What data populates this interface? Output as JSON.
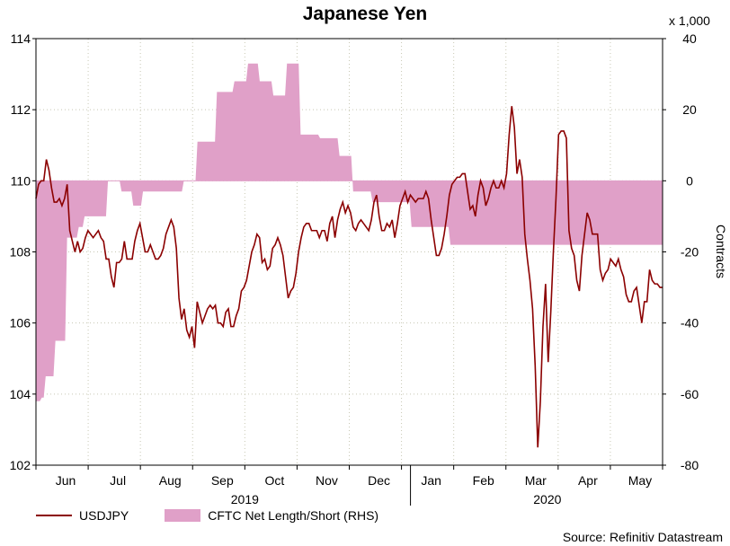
{
  "chart_data": {
    "type": "line+area",
    "title": "Japanese Yen",
    "left_axis": {
      "min": 102,
      "max": 114,
      "ticks": [
        102,
        104,
        106,
        108,
        110,
        112,
        114
      ]
    },
    "right_axis": {
      "label": "Contracts",
      "scale_note": "x 1,000",
      "min": -80,
      "max": 40,
      "ticks": [
        -80,
        -60,
        -40,
        -20,
        0,
        20,
        40
      ]
    },
    "x_axis": {
      "months": [
        "Jun",
        "Jul",
        "Aug",
        "Sep",
        "Oct",
        "Nov",
        "Dec",
        "Jan",
        "Feb",
        "Mar",
        "Apr",
        "May"
      ],
      "years": [
        "2019",
        "2020"
      ]
    },
    "series": [
      {
        "name": "USDJPY",
        "axis": "left",
        "style": "line",
        "color": "#8b0000",
        "values": [
          109.5,
          109.9,
          110.0,
          110.0,
          110.6,
          110.3,
          109.8,
          109.4,
          109.4,
          109.5,
          109.3,
          109.5,
          109.9,
          108.6,
          108.3,
          108.0,
          108.3,
          108.0,
          108.1,
          108.4,
          108.6,
          108.5,
          108.4,
          108.5,
          108.6,
          108.4,
          108.3,
          107.8,
          107.8,
          107.3,
          107.0,
          107.7,
          107.7,
          107.8,
          108.3,
          107.8,
          107.8,
          107.8,
          108.3,
          108.6,
          108.8,
          108.4,
          108.0,
          108.0,
          108.2,
          108.0,
          107.8,
          107.8,
          107.9,
          108.1,
          108.5,
          108.7,
          108.9,
          108.7,
          108.1,
          106.7,
          106.1,
          106.4,
          105.8,
          105.6,
          105.9,
          105.3,
          106.6,
          106.3,
          106.0,
          106.2,
          106.4,
          106.5,
          106.4,
          106.5,
          106.0,
          106.0,
          105.9,
          106.3,
          106.4,
          105.9,
          105.9,
          106.2,
          106.4,
          106.9,
          107.0,
          107.2,
          107.6,
          108.0,
          108.2,
          108.5,
          108.4,
          107.7,
          107.8,
          107.5,
          107.6,
          108.1,
          108.2,
          108.4,
          108.2,
          107.9,
          107.3,
          106.7,
          106.9,
          107.0,
          107.4,
          108.0,
          108.4,
          108.7,
          108.8,
          108.8,
          108.6,
          108.6,
          108.6,
          108.4,
          108.6,
          108.6,
          108.3,
          108.8,
          109.0,
          108.4,
          108.9,
          109.2,
          109.4,
          109.1,
          109.3,
          109.1,
          108.7,
          108.6,
          108.8,
          108.9,
          108.8,
          108.7,
          108.6,
          108.9,
          109.4,
          109.6,
          109.0,
          108.6,
          108.6,
          108.8,
          108.7,
          108.9,
          108.4,
          108.8,
          109.3,
          109.5,
          109.7,
          109.4,
          109.6,
          109.5,
          109.4,
          109.5,
          109.5,
          109.5,
          109.7,
          109.5,
          108.9,
          108.4,
          107.9,
          107.9,
          108.1,
          108.5,
          109.0,
          109.6,
          109.9,
          110.0,
          110.1,
          110.1,
          110.2,
          110.2,
          109.7,
          109.2,
          109.3,
          109.0,
          109.6,
          110.0,
          109.8,
          109.3,
          109.5,
          109.8,
          110.0,
          109.8,
          109.8,
          110.0,
          109.8,
          110.2,
          111.3,
          112.1,
          111.5,
          110.2,
          110.6,
          110.1,
          108.5,
          107.8,
          107.2,
          106.4,
          104.8,
          102.5,
          103.8,
          105.9,
          107.1,
          104.9,
          106.3,
          108.0,
          109.5,
          111.3,
          111.4,
          111.4,
          111.2,
          108.6,
          108.1,
          107.9,
          107.2,
          106.9,
          107.9,
          108.5,
          109.1,
          108.9,
          108.5,
          108.5,
          108.5,
          107.5,
          107.2,
          107.4,
          107.5,
          107.8,
          107.7,
          107.6,
          107.8,
          107.5,
          107.3,
          106.8,
          106.6,
          106.6,
          106.9,
          107.0,
          106.5,
          106.0,
          106.6,
          106.6,
          107.5,
          107.2,
          107.1,
          107.1,
          107.0,
          107.0
        ]
      },
      {
        "name": "CFTC Net Length/Short (RHS)",
        "axis": "right",
        "style": "area",
        "color": "#e0a0c8",
        "values": [
          -62,
          -62,
          -62,
          -61,
          -61,
          -55,
          -55,
          -55,
          -55,
          -55,
          -45,
          -45,
          -45,
          -45,
          -45,
          -45,
          -16,
          -16,
          -16,
          -16,
          -16,
          -16,
          -13,
          -13,
          -13,
          -10,
          -10,
          -10,
          -10,
          -10,
          -10,
          -10,
          -10,
          -10,
          -10,
          -10,
          -10,
          0,
          0,
          0,
          0,
          0,
          0,
          0,
          -3,
          -3,
          -3,
          -3,
          -3,
          -3,
          -7,
          -7,
          -7,
          -7,
          -7,
          -3,
          -3,
          -3,
          -3,
          -3,
          -3,
          -3,
          -3,
          -3,
          -3,
          -3,
          -3,
          -3,
          -3,
          -3,
          -3,
          -3,
          -3,
          -3,
          -3,
          -3,
          0,
          0,
          0,
          0,
          0,
          0,
          0,
          11,
          11,
          11,
          11,
          11,
          11,
          11,
          11,
          11,
          11,
          25,
          25,
          25,
          25,
          25,
          25,
          25,
          25,
          25,
          28,
          28,
          28,
          28,
          28,
          28,
          28,
          33,
          33,
          33,
          33,
          33,
          33,
          28,
          28,
          28,
          28,
          28,
          28,
          28,
          24,
          24,
          24,
          24,
          24,
          24,
          24,
          33,
          33,
          33,
          33,
          33,
          33,
          33,
          13,
          13,
          13,
          13,
          13,
          13,
          13,
          13,
          13,
          13,
          12,
          12,
          12,
          12,
          12,
          12,
          12,
          12,
          12,
          12,
          7,
          7,
          7,
          7,
          7,
          7,
          7,
          -3,
          -3,
          -3,
          -3,
          -3,
          -3,
          -3,
          -3,
          -3,
          -3,
          -6,
          -6,
          -6,
          -6,
          -6,
          -6,
          -6,
          -6,
          -6,
          -6,
          -6,
          -6,
          -6,
          -6,
          -6,
          -6,
          -6,
          -6,
          -6,
          -6,
          -13,
          -13,
          -13,
          -13,
          -13,
          -13,
          -13,
          -13,
          -13,
          -13,
          -13,
          -13,
          -13,
          -13,
          -13,
          -13,
          -13,
          -13,
          -13,
          -13,
          -18,
          -18,
          -18,
          -18,
          -18,
          -18,
          -18,
          -18,
          -18,
          -18,
          -18,
          -18,
          -18,
          -18,
          -18,
          -18,
          -18,
          -18,
          -18,
          -18,
          -18,
          -18,
          -18,
          -18,
          -18,
          -18,
          -18,
          -18,
          -18,
          -18,
          -18,
          -18,
          -18,
          -18,
          -18,
          -18,
          -18,
          -18,
          -18,
          -18,
          -18,
          -18,
          -18,
          -18,
          -18,
          -18,
          -18,
          -18,
          -18,
          -18,
          -18,
          -18,
          -18,
          -18,
          -18,
          -18,
          -18,
          -18,
          -18,
          -18,
          -18,
          -18,
          -18,
          -18,
          -18,
          -18,
          -18,
          -18,
          -18,
          -18,
          -18,
          -18,
          -18,
          -18,
          -18,
          -18,
          -18,
          -18,
          -18,
          -18,
          -18,
          -18,
          -18,
          -18,
          -18,
          -18,
          -18,
          -18,
          -18,
          -18,
          -18,
          -18,
          -18,
          -18,
          -18,
          -18,
          -18,
          -18,
          -18,
          -18,
          -18,
          -18,
          -18,
          -18,
          -18,
          -18,
          -18,
          -18,
          -18,
          -18
        ]
      }
    ],
    "legend": [
      "USDJPY",
      "CFTC Net Length/Short (RHS)"
    ],
    "source": "Source: Refinitiv Datastream"
  }
}
